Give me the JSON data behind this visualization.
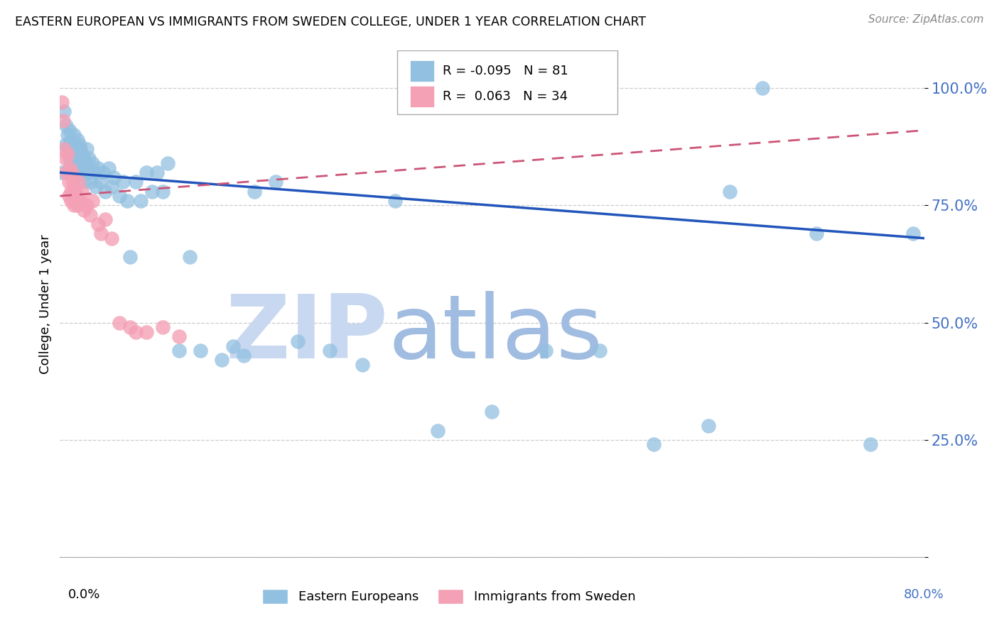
{
  "title": "EASTERN EUROPEAN VS IMMIGRANTS FROM SWEDEN COLLEGE, UNDER 1 YEAR CORRELATION CHART",
  "source": "Source: ZipAtlas.com",
  "ylabel": "College, Under 1 year",
  "yticks": [
    0.0,
    0.25,
    0.5,
    0.75,
    1.0
  ],
  "ytick_labels": [
    "",
    "25.0%",
    "50.0%",
    "75.0%",
    "100.0%"
  ],
  "xlim": [
    0.0,
    0.8
  ],
  "ylim": [
    0.0,
    1.08
  ],
  "blue_R": -0.095,
  "blue_N": 81,
  "pink_R": 0.063,
  "pink_N": 34,
  "blue_color": "#92C0E0",
  "pink_color": "#F4A0B5",
  "blue_line_color": "#2255BB",
  "pink_line_color": "#CC5577",
  "tick_color": "#4472c4",
  "watermark1": "ZIP",
  "watermark2": "atlas",
  "watermark_color1": "#c8d8f0",
  "watermark_color2": "#a0bce0",
  "legend_blue_label": "Eastern Europeans",
  "legend_pink_label": "Immigrants from Sweden",
  "blue_x": [
    0.002,
    0.004,
    0.005,
    0.006,
    0.007,
    0.007,
    0.008,
    0.008,
    0.009,
    0.009,
    0.01,
    0.01,
    0.011,
    0.011,
    0.012,
    0.012,
    0.013,
    0.013,
    0.014,
    0.014,
    0.015,
    0.015,
    0.016,
    0.016,
    0.017,
    0.018,
    0.018,
    0.019,
    0.02,
    0.02,
    0.022,
    0.022,
    0.024,
    0.025,
    0.026,
    0.027,
    0.028,
    0.03,
    0.032,
    0.033,
    0.035,
    0.037,
    0.04,
    0.042,
    0.045,
    0.048,
    0.05,
    0.055,
    0.058,
    0.062,
    0.065,
    0.07,
    0.075,
    0.08,
    0.085,
    0.09,
    0.095,
    0.1,
    0.11,
    0.12,
    0.13,
    0.15,
    0.16,
    0.17,
    0.18,
    0.2,
    0.22,
    0.25,
    0.28,
    0.31,
    0.35,
    0.4,
    0.45,
    0.5,
    0.55,
    0.6,
    0.62,
    0.65,
    0.7,
    0.75,
    0.79
  ],
  "blue_y": [
    0.82,
    0.95,
    0.88,
    0.92,
    0.87,
    0.9,
    0.88,
    0.86,
    0.91,
    0.85,
    0.89,
    0.84,
    0.88,
    0.83,
    0.87,
    0.85,
    0.9,
    0.83,
    0.88,
    0.84,
    0.87,
    0.85,
    0.89,
    0.83,
    0.86,
    0.88,
    0.82,
    0.87,
    0.86,
    0.83,
    0.85,
    0.8,
    0.84,
    0.87,
    0.82,
    0.85,
    0.8,
    0.84,
    0.82,
    0.79,
    0.83,
    0.8,
    0.82,
    0.78,
    0.83,
    0.79,
    0.81,
    0.77,
    0.8,
    0.76,
    0.64,
    0.8,
    0.76,
    0.82,
    0.78,
    0.82,
    0.78,
    0.84,
    0.44,
    0.64,
    0.44,
    0.42,
    0.45,
    0.43,
    0.78,
    0.8,
    0.46,
    0.44,
    0.41,
    0.76,
    0.27,
    0.31,
    0.44,
    0.44,
    0.24,
    0.28,
    0.78,
    1.0,
    0.69,
    0.24,
    0.69
  ],
  "pink_x": [
    0.002,
    0.003,
    0.004,
    0.005,
    0.006,
    0.007,
    0.008,
    0.008,
    0.009,
    0.01,
    0.01,
    0.011,
    0.012,
    0.013,
    0.014,
    0.015,
    0.016,
    0.017,
    0.018,
    0.02,
    0.022,
    0.025,
    0.028,
    0.03,
    0.035,
    0.038,
    0.042,
    0.048,
    0.055,
    0.065,
    0.07,
    0.08,
    0.095,
    0.11
  ],
  "pink_y": [
    0.97,
    0.93,
    0.87,
    0.85,
    0.82,
    0.86,
    0.8,
    0.77,
    0.83,
    0.78,
    0.76,
    0.82,
    0.8,
    0.75,
    0.78,
    0.76,
    0.75,
    0.8,
    0.76,
    0.78,
    0.74,
    0.75,
    0.73,
    0.76,
    0.71,
    0.69,
    0.72,
    0.68,
    0.5,
    0.49,
    0.48,
    0.48,
    0.49,
    0.47
  ],
  "blue_trend_x": [
    0.0,
    0.8
  ],
  "blue_trend_y": [
    0.82,
    0.68
  ],
  "pink_trend_x": [
    0.0,
    0.8
  ],
  "pink_trend_y": [
    0.77,
    0.91
  ]
}
